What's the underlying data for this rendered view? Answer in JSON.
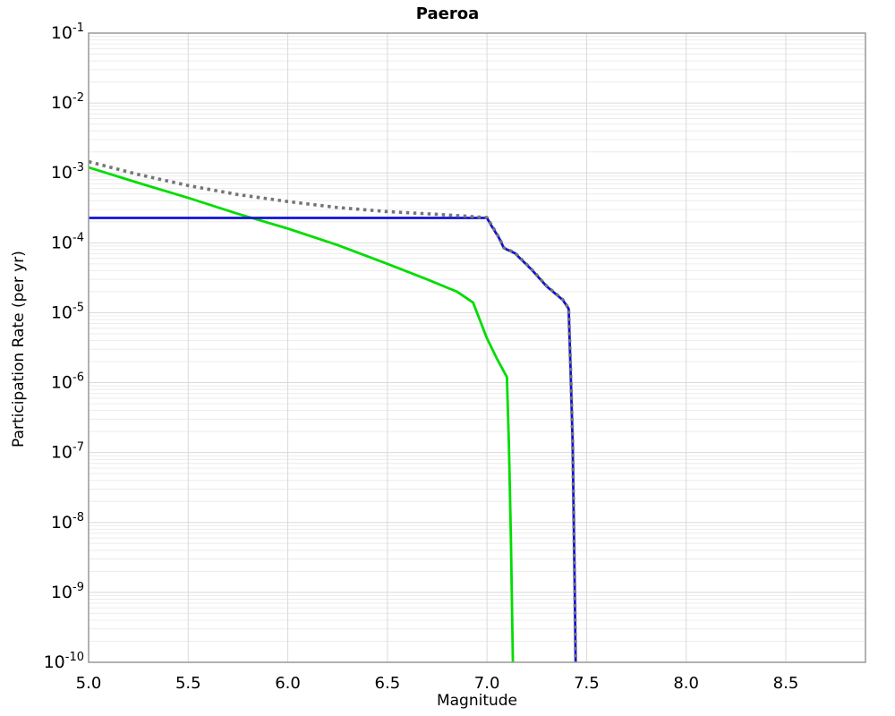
{
  "chart_data": {
    "type": "line",
    "title": "Paeroa",
    "xlabel": "Magnitude",
    "ylabel": "Participation Rate (per yr)",
    "xlim": [
      5.0,
      8.9
    ],
    "ylim_exp": [
      -1,
      -10
    ],
    "grid": true,
    "legend": "none",
    "x_ticks": [
      {
        "value": 5.0,
        "label": "5.0"
      },
      {
        "value": 5.5,
        "label": "5.5"
      },
      {
        "value": 6.0,
        "label": "6.0"
      },
      {
        "value": 6.5,
        "label": "6.5"
      },
      {
        "value": 7.0,
        "label": "7.0"
      },
      {
        "value": 7.5,
        "label": "7.5"
      },
      {
        "value": 8.0,
        "label": "8.0"
      },
      {
        "value": 8.5,
        "label": "8.5"
      }
    ],
    "y_ticks": [
      {
        "exp": -1,
        "base": "10",
        "sup": "-1"
      },
      {
        "exp": -2,
        "base": "10",
        "sup": "-2"
      },
      {
        "exp": -3,
        "base": "10",
        "sup": "-3"
      },
      {
        "exp": -4,
        "base": "10",
        "sup": "-4"
      },
      {
        "exp": -5,
        "base": "10",
        "sup": "-5"
      },
      {
        "exp": -6,
        "base": "10",
        "sup": "-6"
      },
      {
        "exp": -7,
        "base": "10",
        "sup": "-7"
      },
      {
        "exp": -8,
        "base": "10",
        "sup": "-8"
      },
      {
        "exp": -9,
        "base": "10",
        "sup": "-9"
      },
      {
        "exp": -10,
        "base": "10",
        "sup": "-10"
      }
    ],
    "colors": {
      "grid_minor": "#ececec",
      "grid_major": "#dadada",
      "border": "#999999",
      "text": "#000000"
    },
    "series": [
      {
        "name": "green-solid",
        "style": "solid",
        "color": "#00dd00",
        "width": 2.8,
        "points": [
          [
            5.0,
            0.0012
          ],
          [
            5.25,
            0.00072
          ],
          [
            5.5,
            0.00044
          ],
          [
            5.75,
            0.00026
          ],
          [
            6.0,
            0.00016
          ],
          [
            6.25,
            9.3e-05
          ],
          [
            6.5,
            5e-05
          ],
          [
            6.7,
            3e-05
          ],
          [
            6.85,
            2e-05
          ],
          [
            6.93,
            1.4e-05
          ],
          [
            7.0,
            4.3e-06
          ],
          [
            7.05,
            2.2e-06
          ],
          [
            7.1,
            1.2e-06
          ],
          [
            7.11,
            1.3e-07
          ],
          [
            7.12,
            6e-09
          ],
          [
            7.13,
            1e-10
          ]
        ]
      },
      {
        "name": "blue-solid",
        "style": "solid",
        "color": "#1111dd",
        "width": 2.8,
        "points": [
          [
            5.0,
            0.000227
          ],
          [
            7.0,
            0.000227
          ],
          [
            7.02,
            0.00018
          ],
          [
            7.06,
            0.000118
          ],
          [
            7.085,
            8.4e-05
          ],
          [
            7.14,
            7.1e-05
          ],
          [
            7.22,
            4.25e-05
          ],
          [
            7.3,
            2.38e-05
          ],
          [
            7.38,
            1.53e-05
          ],
          [
            7.41,
            1.14e-05
          ],
          [
            7.42,
            1.4e-06
          ],
          [
            7.43,
            1.4e-07
          ],
          [
            7.435,
            1.4e-08
          ],
          [
            7.44,
            1.4e-09
          ],
          [
            7.445,
            1e-10
          ]
        ]
      },
      {
        "name": "gray-dotted-total",
        "style": "dotted",
        "color": "#757575",
        "width": 3.6,
        "points": [
          [
            5.0,
            0.00145
          ],
          [
            5.25,
            0.00095
          ],
          [
            5.5,
            0.00066
          ],
          [
            5.75,
            0.00049
          ],
          [
            6.0,
            0.00039
          ],
          [
            6.25,
            0.00032
          ],
          [
            6.5,
            0.00028
          ],
          [
            6.75,
            0.000256
          ],
          [
            6.9,
            0.00024
          ],
          [
            7.0,
            0.00023
          ],
          [
            7.02,
            0.000185
          ],
          [
            7.06,
            0.00012
          ],
          [
            7.085,
            8.5e-05
          ],
          [
            7.14,
            7.2e-05
          ],
          [
            7.22,
            4.3e-05
          ],
          [
            7.3,
            2.4e-05
          ],
          [
            7.38,
            1.55e-05
          ],
          [
            7.41,
            1.15e-05
          ],
          [
            7.42,
            1.5e-06
          ],
          [
            7.43,
            1.5e-07
          ],
          [
            7.435,
            1.5e-08
          ],
          [
            7.44,
            1.5e-09
          ],
          [
            7.445,
            1e-10
          ]
        ]
      }
    ]
  }
}
